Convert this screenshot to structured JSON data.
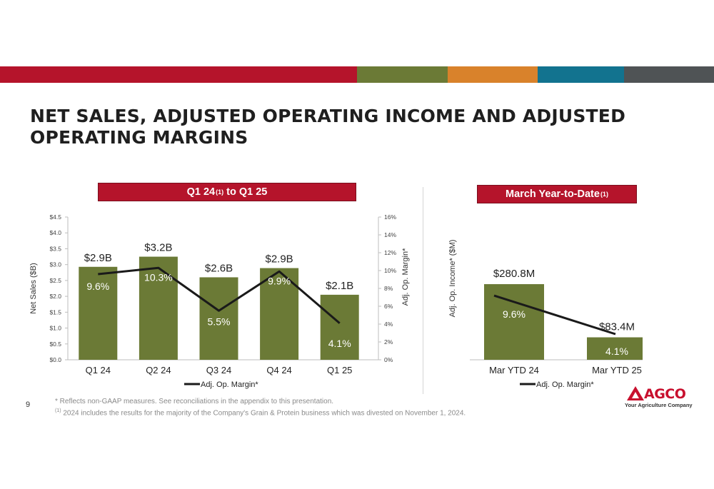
{
  "stripe_colors": [
    "#b5142b",
    "#6b7a36",
    "#d9822b",
    "#12738f",
    "#4f5355"
  ],
  "title": "NET SALES, ADJUSTED OPERATING INCOME AND ADJUSTED OPERATING MARGINS",
  "left_header": {
    "text": "Q1 24",
    "sup": "(1)",
    "suffix": " to Q1 25"
  },
  "right_header": {
    "text": "March Year-to-Date",
    "sup": "(1)"
  },
  "colors": {
    "bar": "#6b7a36",
    "line": "#1a1a1a",
    "accent": "#b5142b"
  },
  "chart_data": [
    {
      "type": "bar",
      "categories": [
        "Q1 24",
        "Q2 24",
        "Q3 24",
        "Q4 24",
        "Q1 25"
      ],
      "series": [
        {
          "name": "Net Sales",
          "values": [
            2.93,
            3.25,
            2.6,
            2.89,
            2.05
          ],
          "labels": [
            "$2.9B",
            "$3.2B",
            "$2.6B",
            "$2.9B",
            "$2.1B"
          ]
        },
        {
          "name": "Adj. Op. Margin*",
          "type": "line",
          "axis": "right",
          "values": [
            9.6,
            10.3,
            5.5,
            9.9,
            4.1
          ],
          "labels": [
            "9.6%",
            "10.3%",
            "5.5%",
            "9.9%",
            "4.1%"
          ]
        }
      ],
      "ylabel": "Net Sales ($B)",
      "ylabel_right": "Adj. Op. Margin*",
      "ylim": [
        0,
        4.5
      ],
      "yticks": [
        0,
        0.5,
        1.0,
        1.5,
        2.0,
        2.5,
        3.0,
        3.5,
        4.0,
        4.5
      ],
      "ytick_labels": [
        "$0.0",
        "$0.5",
        "$1.0",
        "$1.5",
        "$2.0",
        "$2.5",
        "$3.0",
        "$3.5",
        "$4.0",
        "$4.5"
      ],
      "ylim_right": [
        0,
        16
      ],
      "yticks_right": [
        0,
        2,
        4,
        6,
        8,
        10,
        12,
        14,
        16
      ],
      "ytick_labels_right": [
        "0%",
        "2%",
        "4%",
        "6%",
        "8%",
        "10%",
        "12%",
        "14%",
        "16%"
      ],
      "legend": "Adj. Op. Margin*",
      "legend_position": "bottom"
    },
    {
      "type": "bar",
      "categories": [
        "Mar YTD 24",
        "Mar YTD 25"
      ],
      "series": [
        {
          "name": "Adj. Op. Income",
          "values": [
            280.8,
            83.4
          ],
          "labels": [
            "$280.8M",
            "$83.4M"
          ]
        },
        {
          "name": "Adj. Op. Margin*",
          "type": "line",
          "values": [
            9.6,
            4.1
          ],
          "labels": [
            "9.6%",
            "4.1%"
          ]
        }
      ],
      "ylabel": "Adj. Op. Income* ($M)",
      "legend": "Adj. Op. Margin*",
      "legend_position": "bottom"
    }
  ],
  "footnotes": {
    "note1": "* Reflects non-GAAP measures. See reconciliations in the appendix to this presentation.",
    "note2_sup": "(1)",
    "note2": " 2024 includes the results for the majority of the Company's Grain & Protein business which was divested on November 1, 2024."
  },
  "page_number": "9",
  "logo": {
    "word": "AGCO",
    "tagline": "Your Agriculture Company"
  }
}
